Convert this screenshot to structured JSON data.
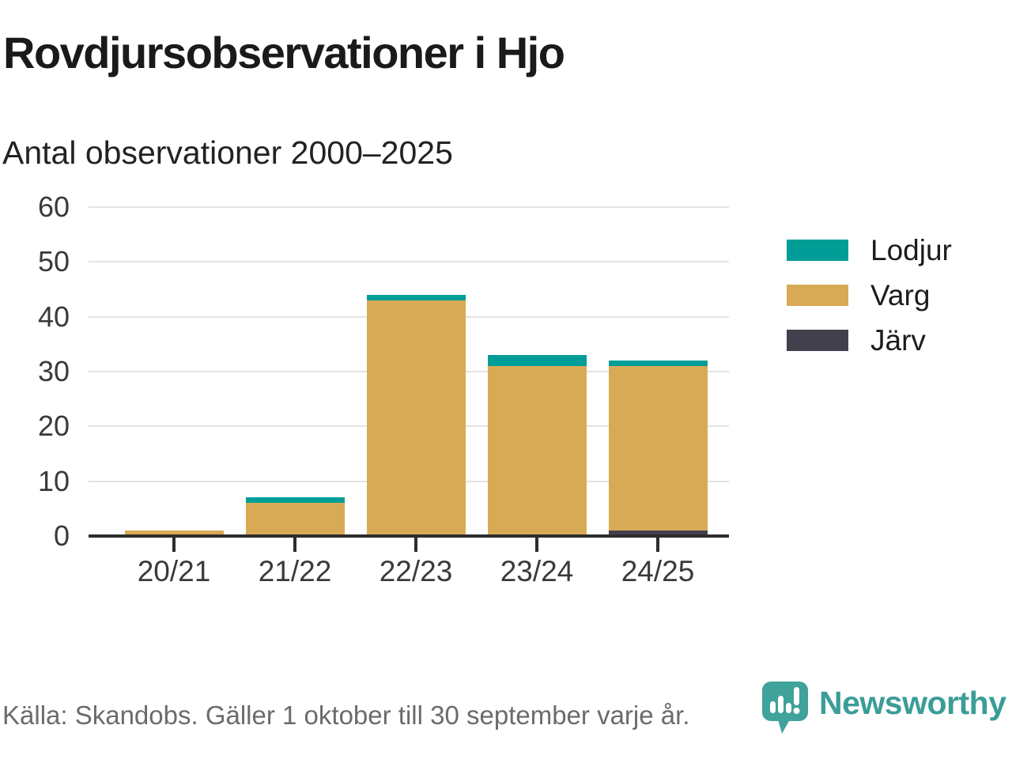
{
  "chart_data": {
    "type": "bar",
    "stacked": true,
    "title": "Rovdjursobservationer i Hjo",
    "subtitle": "Antal observationer 2000–2025",
    "categories": [
      "20/21",
      "21/22",
      "22/23",
      "23/24",
      "24/25"
    ],
    "series": [
      {
        "name": "Lodjur",
        "color": "#009E96",
        "values": [
          0,
          1,
          1,
          2,
          1
        ]
      },
      {
        "name": "Varg",
        "color": "#D9AA55",
        "values": [
          1,
          6,
          43,
          31,
          30
        ]
      },
      {
        "name": "Järv",
        "color": "#42404D",
        "values": [
          0,
          0,
          0,
          0,
          1
        ]
      }
    ],
    "stack_order_bottom_to_top": [
      "Järv",
      "Varg",
      "Lodjur"
    ],
    "totals": [
      1,
      7,
      44,
      33,
      32
    ],
    "ylim": [
      0,
      60
    ],
    "y_ticks": [
      0,
      10,
      20,
      30,
      40,
      50,
      60
    ],
    "grid": "horizontal",
    "legend_position": "right",
    "xlabel": "",
    "ylabel": ""
  },
  "footer": {
    "source": "Källa: Skandobs. Gäller 1 oktober till 30 september varje år.",
    "brand": "Newsworthy"
  },
  "colors": {
    "background": "#FFFFFF",
    "grid": "#E3E3E3",
    "axis": "#2D2D2D",
    "text_dark": "#1A1A1A",
    "text_axis": "#3A3A3A",
    "text_muted": "#6B6B6B",
    "brand_teal": "#3B9D97"
  }
}
